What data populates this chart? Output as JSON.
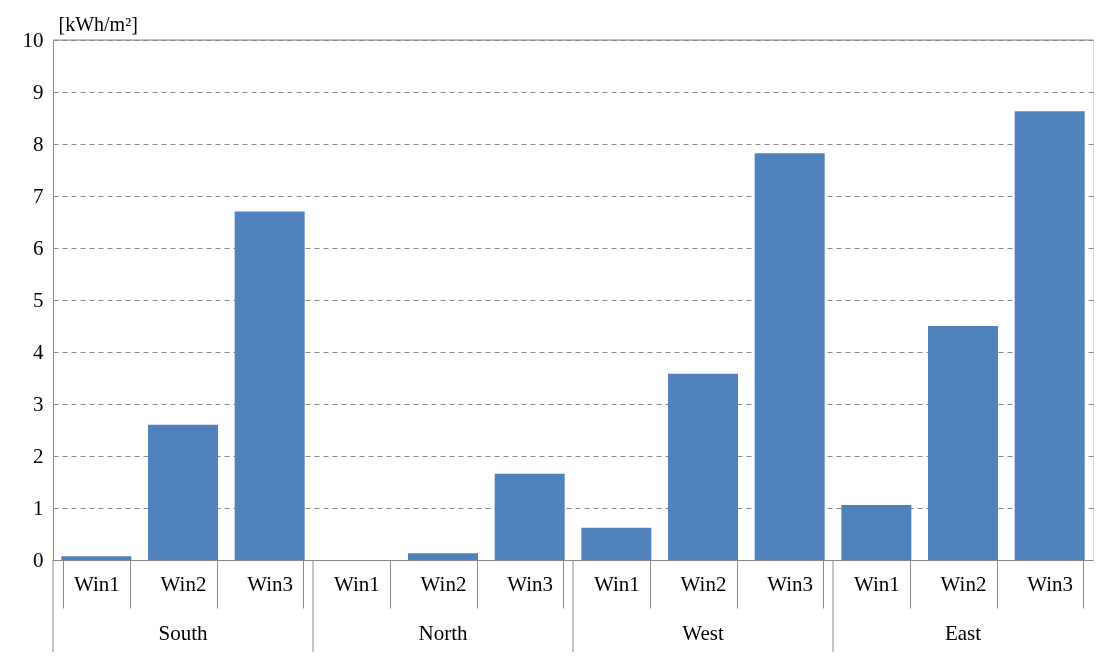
{
  "chart_data": {
    "type": "bar",
    "ylabel": "[kWh/m²]",
    "categories": [
      "Win1",
      "Win2",
      "Win3",
      "Win1",
      "Win2",
      "Win3",
      "Win1",
      "Win2",
      "Win3",
      "Win1",
      "Win2",
      "Win3"
    ],
    "values": [
      0.07,
      2.6,
      6.7,
      0,
      0.13,
      1.66,
      0.62,
      3.58,
      7.82,
      1.06,
      4.5,
      8.63
    ],
    "color": "#4f81bd",
    "ylim": [
      0,
      10
    ],
    "yticks": [
      0,
      1,
      2,
      3,
      4,
      5,
      6,
      7,
      8,
      9,
      10
    ],
    "grid": "y",
    "annotations": [
      "South",
      "North",
      "West",
      "East"
    ]
  }
}
